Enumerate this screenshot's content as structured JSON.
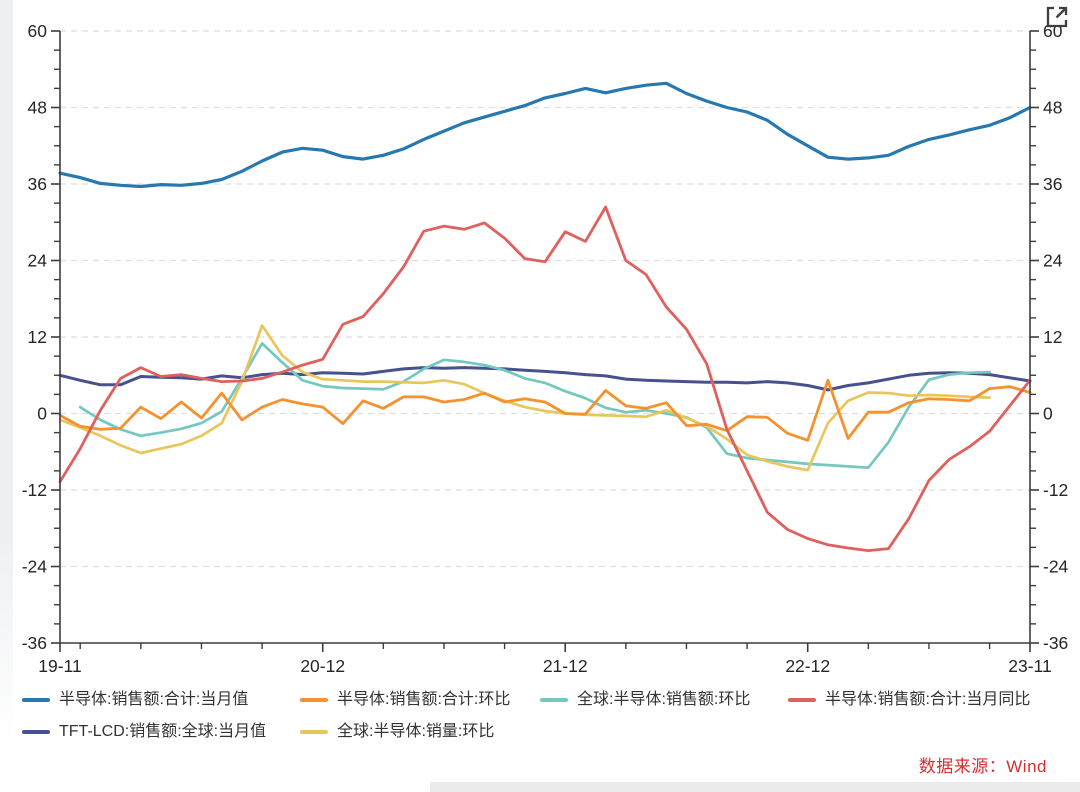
{
  "chart_data": {
    "type": "line",
    "title": "",
    "x_unit": "year-month",
    "x_months": [
      "19-11",
      "19-12",
      "20-01",
      "20-02",
      "20-03",
      "20-04",
      "20-05",
      "20-06",
      "20-07",
      "20-08",
      "20-09",
      "20-10",
      "20-11",
      "20-12",
      "21-01",
      "21-02",
      "21-03",
      "21-04",
      "21-05",
      "21-06",
      "21-07",
      "21-08",
      "21-09",
      "21-10",
      "21-11",
      "21-12",
      "22-01",
      "22-02",
      "22-03",
      "22-04",
      "22-05",
      "22-06",
      "22-07",
      "22-08",
      "22-09",
      "22-10",
      "22-11",
      "22-12",
      "23-01",
      "23-02",
      "23-03",
      "23-04",
      "23-05",
      "23-06",
      "23-07",
      "23-08",
      "23-09",
      "23-10",
      "23-11"
    ],
    "x_axis": {
      "labels": [
        "19-11",
        "20-12",
        "21-12",
        "22-12",
        "23-11"
      ],
      "label_months": [
        0,
        13,
        25,
        37,
        48
      ],
      "minor_tick_months": [
        1,
        4,
        7,
        10,
        16,
        19,
        22,
        28,
        31,
        34,
        40,
        43,
        46
      ]
    },
    "y_axis": {
      "min": -36,
      "max": 60,
      "ticks": [
        60,
        48,
        36,
        24,
        12,
        0,
        -12,
        -24,
        -36
      ],
      "minor_step": 3,
      "dual_axis": true,
      "grid": "dashed"
    },
    "series": [
      {
        "name": "TFT-LCD:销售额:全球:当月值",
        "color": "#47518e",
        "start_month": 0,
        "values": [
          6.0,
          5.2,
          4.5,
          4.5,
          5.8,
          5.7,
          5.6,
          5.4,
          5.9,
          5.6,
          6.1,
          6.3,
          6.1,
          6.4,
          6.3,
          6.2,
          6.6,
          7.0,
          7.2,
          7.1,
          7.2,
          7.1,
          7.0,
          6.8,
          6.6,
          6.4,
          6.1,
          5.9,
          5.4,
          5.2,
          5.1,
          5.0,
          4.9,
          4.9,
          4.8,
          5.0,
          4.8,
          4.4,
          3.7,
          4.4,
          4.8,
          5.4,
          6.0,
          6.3,
          6.4,
          6.3,
          6.1,
          5.6,
          5.1
        ]
      },
      {
        "name": "半导体:销售额:合计:当月值",
        "color": "#2878b0",
        "start_month": 0,
        "values": [
          37.7,
          37.0,
          36.1,
          35.8,
          35.6,
          35.9,
          35.8,
          36.1,
          36.7,
          38.0,
          39.6,
          41.0,
          41.6,
          41.3,
          40.3,
          39.9,
          40.5,
          41.5,
          43.0,
          44.3,
          45.6,
          46.5,
          47.4,
          48.3,
          49.5,
          50.2,
          51.0,
          50.3,
          51.0,
          51.5,
          51.8,
          50.2,
          49.0,
          48.0,
          47.3,
          46.0,
          43.8,
          42.0,
          40.2,
          39.9,
          40.1,
          40.5,
          41.9,
          43.0,
          43.7,
          44.5,
          45.2,
          46.4,
          48.0
        ]
      },
      {
        "name": "全球:半导体:销售额:环比",
        "color": "#74c8c0",
        "start_month": 1,
        "values": [
          1.0,
          -1.0,
          -2.5,
          -3.5,
          -3.0,
          -2.4,
          -1.5,
          0.3,
          5.5,
          11.0,
          8.0,
          5.2,
          4.3,
          4.0,
          3.9,
          3.8,
          5.0,
          7.0,
          8.4,
          8.1,
          7.6,
          6.8,
          5.5,
          4.8,
          3.5,
          2.4,
          0.9,
          0.2,
          0.5,
          0.0,
          -0.6,
          -2.2,
          -6.3,
          -7.0,
          -7.3,
          -7.6,
          -7.9,
          -8.1,
          -8.3,
          -8.5,
          -4.5,
          1.0,
          5.3,
          6.1,
          6.4,
          6.5
        ]
      },
      {
        "name": "全球:半导体:销量:环比",
        "color": "#e9c65b",
        "start_month": 0,
        "values": [
          -1.0,
          -2.2,
          -3.5,
          -5.0,
          -6.2,
          -5.5,
          -4.8,
          -3.5,
          -1.5,
          5.0,
          13.8,
          9.1,
          6.5,
          5.4,
          5.2,
          5.0,
          5.0,
          4.9,
          4.8,
          5.2,
          4.6,
          3.2,
          2.0,
          1.0,
          0.4,
          0.0,
          -0.2,
          -0.3,
          -0.4,
          -0.5,
          0.5,
          -0.7,
          -2.0,
          -4.0,
          -6.5,
          -7.5,
          -8.3,
          -8.9,
          -1.5,
          2.0,
          3.3,
          3.2,
          2.8,
          2.9,
          2.8,
          2.6,
          2.5
        ]
      },
      {
        "name": "半导体:销售额:合计:环比",
        "color": "#f5922f",
        "start_month": 0,
        "values": [
          -0.3,
          -2.0,
          -2.5,
          -2.3,
          1.0,
          -0.8,
          1.8,
          -0.7,
          3.2,
          -1.0,
          1.0,
          2.2,
          1.5,
          1.0,
          -1.6,
          2.0,
          0.8,
          2.6,
          2.6,
          1.8,
          2.2,
          3.2,
          1.8,
          2.3,
          1.8,
          0.0,
          -0.1,
          3.6,
          1.2,
          0.8,
          1.7,
          -1.9,
          -1.7,
          -2.7,
          -0.5,
          -0.6,
          -3.1,
          -4.2,
          5.2,
          -3.9,
          0.2,
          0.2,
          1.7,
          2.3,
          2.2,
          2.0,
          3.9,
          4.2,
          3.3
        ]
      },
      {
        "name": "半导体:销售额:合计:当月同比",
        "color": "#e0605e",
        "start_month": 0,
        "values": [
          -10.7,
          -5.5,
          0.5,
          5.5,
          7.2,
          5.8,
          6.1,
          5.5,
          5.0,
          5.1,
          5.5,
          6.5,
          7.6,
          8.5,
          14.0,
          15.2,
          18.8,
          23.0,
          28.6,
          29.4,
          28.9,
          29.9,
          27.5,
          24.3,
          23.8,
          28.5,
          27.0,
          32.4,
          24.0,
          21.8,
          16.7,
          13.2,
          7.8,
          -2.5,
          -9.0,
          -15.5,
          -18.2,
          -19.6,
          -20.6,
          -21.1,
          -21.5,
          -21.2,
          -16.5,
          -10.5,
          -7.2,
          -5.2,
          -2.8,
          1.2,
          5.2
        ]
      }
    ],
    "legend": [
      {
        "label": "半导体:销售额:合计:当月值",
        "color": "#2878b0"
      },
      {
        "label": "半导体:销售额:合计:环比",
        "color": "#f5922f"
      },
      {
        "label": "全球:半导体:销售额:环比",
        "color": "#74c8c0"
      },
      {
        "label": "半导体:销售额:合计:当月同比",
        "color": "#e0605e"
      },
      {
        "label": "TFT-LCD:销售额:全球:当月值",
        "color": "#47518e"
      },
      {
        "label": "全球:半导体:销量:环比",
        "color": "#e9c65b"
      }
    ],
    "legend_position": "bottom-left"
  },
  "source": {
    "label": "数据来源：Wind",
    "color": "#d72f2f"
  },
  "icons": {
    "expand": "expand-icon"
  }
}
